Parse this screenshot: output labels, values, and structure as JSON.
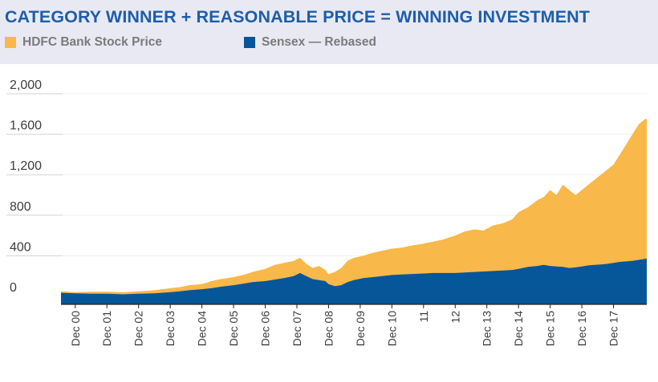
{
  "title": "CATEGORY WINNER + REASONABLE PRICE = WINNING INVESTMENT",
  "colors": {
    "band": "#e9e9f3",
    "title": "#1d5ea8",
    "hdfc": "#f9b84a",
    "sensex": "#06569a",
    "grid": "#cfd2e2",
    "tick_text": "#3d3d3d"
  },
  "chart_data": {
    "type": "area",
    "title": "CATEGORY WINNER + REASONABLE PRICE = WINNING INVESTMENT",
    "xlabel": "",
    "ylabel": "",
    "ylim": [
      0,
      2000
    ],
    "xlim": [
      -0.45,
      18.05
    ],
    "grid": true,
    "legend_position": "top-left",
    "y_ticks": [
      "2,000",
      "1,600",
      "1,200",
      "800",
      "400",
      "0"
    ],
    "y_tick_values": [
      2000,
      1600,
      1200,
      800,
      400,
      0
    ],
    "x_tick_labels": [
      "Dec 00",
      "Dec 01",
      "Dec 02",
      "Dec 03",
      "Dec 04",
      "Dec 05",
      "Dec 06",
      "Dec 07",
      "Dec 08",
      "Dec 09",
      "Dec 10",
      "11",
      "12",
      "Dec 13",
      "Dec 14",
      "Dec 15",
      "Dec 16",
      "Dec 17"
    ],
    "series": [
      {
        "name": "HDFC Bank Stock Price",
        "color": "#f9b84a",
        "x": [
          -0.45,
          0,
          0.5,
          1,
          1.5,
          2,
          2.5,
          3,
          3.3,
          3.6,
          4,
          4.3,
          4.6,
          5,
          5.3,
          5.6,
          6,
          6.3,
          6.6,
          6.9,
          7.1,
          7.3,
          7.5,
          7.7,
          7.9,
          8.0,
          8.2,
          8.4,
          8.6,
          8.8,
          9.1,
          9.4,
          9.7,
          10,
          10.3,
          10.6,
          11,
          11.3,
          11.6,
          12,
          12.3,
          12.6,
          12.9,
          13.2,
          13.5,
          13.8,
          14,
          14.3,
          14.6,
          14.8,
          15.0,
          15.2,
          15.4,
          15.6,
          15.8,
          16,
          16.2,
          16.4,
          16.6,
          16.8,
          17.0,
          17.2,
          17.4,
          17.6,
          17.8,
          18.0,
          18.05
        ],
        "values": [
          50,
          40,
          45,
          45,
          40,
          50,
          60,
          80,
          90,
          110,
          120,
          150,
          170,
          190,
          210,
          240,
          270,
          310,
          330,
          350,
          380,
          320,
          280,
          300,
          260,
          220,
          240,
          280,
          350,
          380,
          400,
          430,
          450,
          470,
          480,
          500,
          520,
          540,
          560,
          600,
          640,
          660,
          650,
          700,
          720,
          760,
          830,
          880,
          950,
          980,
          1050,
          1000,
          1100,
          1050,
          1000,
          1050,
          1100,
          1150,
          1200,
          1250,
          1300,
          1400,
          1500,
          1600,
          1700,
          1750,
          1750
        ]
      },
      {
        "name": "Sensex — Rebased",
        "color": "#06569a",
        "x": [
          -0.45,
          0,
          0.5,
          1,
          1.5,
          2,
          2.5,
          3,
          3.3,
          3.6,
          4,
          4.3,
          4.6,
          5,
          5.3,
          5.6,
          6,
          6.3,
          6.6,
          6.9,
          7.1,
          7.3,
          7.5,
          7.7,
          7.9,
          8.0,
          8.2,
          8.4,
          8.6,
          8.8,
          9.1,
          9.4,
          9.7,
          10,
          10.3,
          10.6,
          11,
          11.3,
          11.6,
          12,
          12.3,
          12.6,
          12.9,
          13.2,
          13.5,
          13.8,
          14,
          14.3,
          14.6,
          14.8,
          15.0,
          15.2,
          15.4,
          15.6,
          15.8,
          16,
          16.2,
          16.4,
          16.6,
          16.8,
          17.0,
          17.2,
          17.4,
          17.6,
          17.8,
          18.0,
          18.05
        ],
        "values": [
          35,
          30,
          25,
          25,
          20,
          25,
          30,
          40,
          50,
          60,
          70,
          80,
          95,
          110,
          125,
          140,
          150,
          165,
          180,
          200,
          230,
          200,
          170,
          160,
          150,
          120,
          100,
          110,
          140,
          160,
          180,
          190,
          200,
          210,
          215,
          220,
          225,
          230,
          230,
          230,
          235,
          240,
          245,
          250,
          255,
          260,
          270,
          290,
          300,
          310,
          300,
          295,
          290,
          280,
          285,
          295,
          305,
          310,
          315,
          320,
          330,
          340,
          345,
          350,
          360,
          370,
          375
        ]
      }
    ]
  }
}
